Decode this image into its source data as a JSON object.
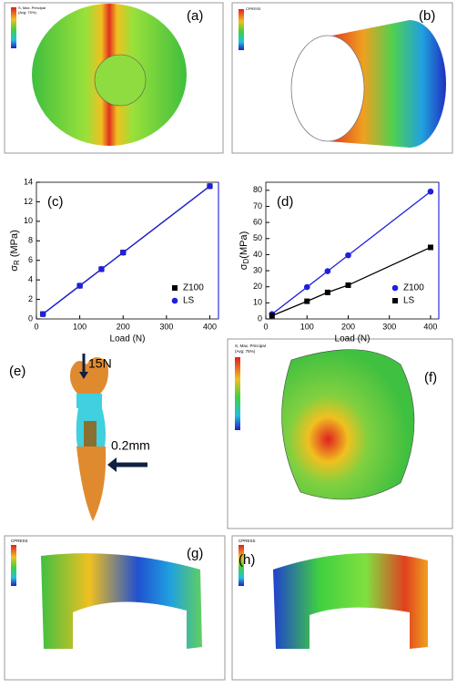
{
  "chart_data": [
    {
      "type": "line",
      "panel": "(c)",
      "y_label": [
        "σ",
        "R",
        " (MPa)"
      ],
      "x_label": "Load (N)",
      "xlim": [
        0,
        420
      ],
      "xticks": [
        0,
        100,
        200,
        300,
        400
      ],
      "ylim": [
        0,
        14
      ],
      "yticks": [
        0,
        2,
        4,
        6,
        8,
        10,
        12,
        14
      ],
      "legend": "lower right",
      "series": [
        {
          "name": "Z100",
          "color": "#000000",
          "marker": "square",
          "x": [
            15,
            100,
            150,
            200,
            400
          ],
          "values": [
            0.5,
            3.4,
            5.1,
            6.8,
            13.6
          ]
        },
        {
          "name": "LS",
          "color": "#1f1fe0",
          "marker": "circle",
          "x": [
            15,
            100,
            150,
            200,
            400
          ],
          "values": [
            0.5,
            3.4,
            5.1,
            6.8,
            13.6
          ]
        }
      ]
    },
    {
      "type": "line",
      "panel": "(d)",
      "y_label": [
        "σ",
        "D",
        "(MPa)"
      ],
      "x_label": "Load (N)",
      "xlim": [
        0,
        420
      ],
      "xticks": [
        0,
        100,
        200,
        300,
        400
      ],
      "ylim": [
        0,
        85
      ],
      "yticks": [
        0,
        10,
        20,
        30,
        40,
        50,
        60,
        70,
        80
      ],
      "legend": "lower right",
      "series": [
        {
          "name": "Z100",
          "color": "#1f1fe0",
          "marker": "circle",
          "x": [
            15,
            100,
            150,
            200,
            400
          ],
          "values": [
            3,
            19.8,
            29.7,
            39.6,
            79.2
          ]
        },
        {
          "name": "LS",
          "color": "#000000",
          "marker": "square",
          "x": [
            15,
            100,
            150,
            200,
            400
          ],
          "values": [
            2,
            11,
            16.5,
            21,
            44.5
          ]
        }
      ]
    }
  ],
  "figure": {
    "panel_labels": [
      "(a)",
      "(b)",
      "(e)",
      "(f)",
      "(g)",
      "(h)"
    ],
    "legend_titles": [
      "S, Max. Principal",
      "(Avg: 75%)",
      "CPRESS"
    ],
    "annotations": [
      "15N",
      "0.2mm"
    ]
  }
}
